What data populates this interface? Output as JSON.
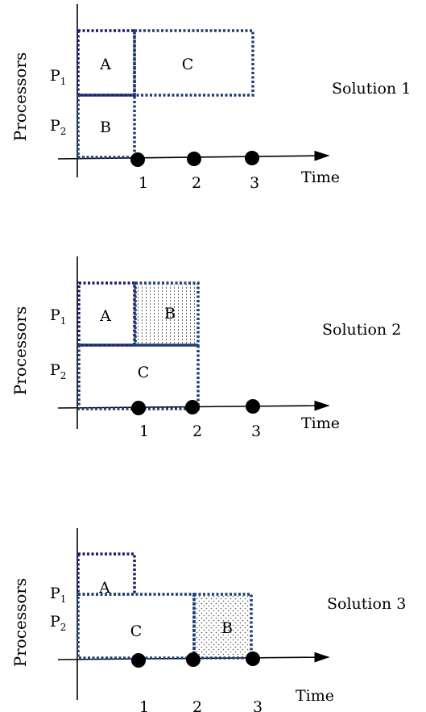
{
  "diagrams": [
    {
      "solution_label": "Solution 1",
      "y_axis_label": "Processors",
      "x_axis_label": "Time",
      "processors": [
        {
          "main": "P",
          "sub": "1"
        },
        {
          "main": "P",
          "sub": "2"
        }
      ],
      "ticks": [
        "1",
        "2",
        "3"
      ],
      "tasks": [
        "A",
        "C",
        "B"
      ]
    },
    {
      "solution_label": "Solution 2",
      "y_axis_label": "Processors",
      "x_axis_label": "Time",
      "processors": [
        {
          "main": "P",
          "sub": "1"
        },
        {
          "main": "P",
          "sub": "2"
        }
      ],
      "ticks": [
        "1",
        "2",
        "3"
      ],
      "tasks": [
        "A",
        "B",
        "C"
      ]
    },
    {
      "solution_label": "Solution 3",
      "y_axis_label": "Processors",
      "x_axis_label": "Time",
      "processors": [
        {
          "main": "P",
          "sub": "1"
        },
        {
          "main": "P",
          "sub": "2"
        }
      ],
      "ticks": [
        "1",
        "2",
        "3"
      ],
      "tasks": [
        "A",
        "C",
        "B"
      ]
    }
  ]
}
